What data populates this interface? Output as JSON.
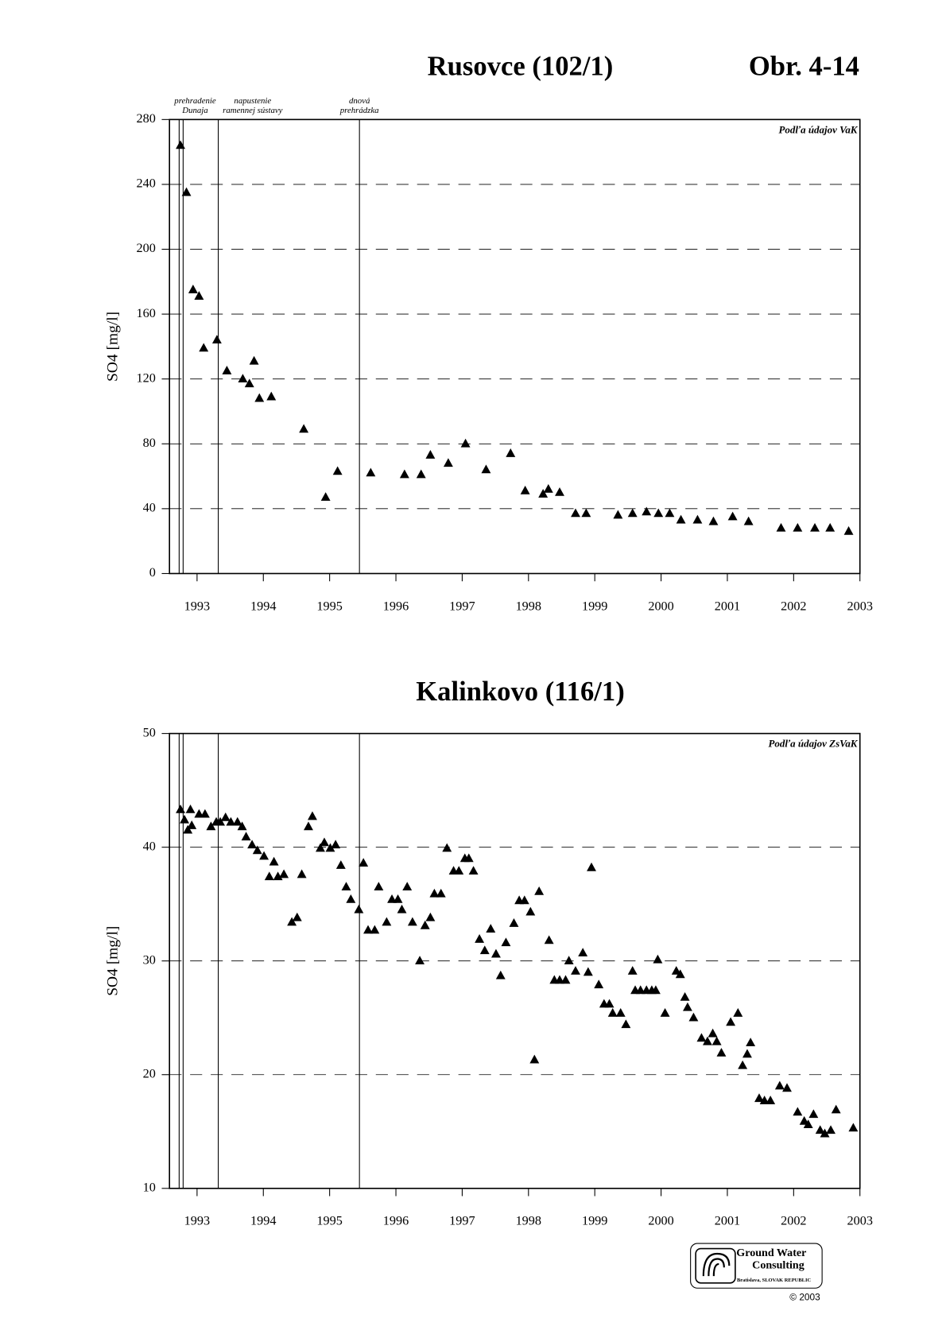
{
  "figure_label": "Obr. 4-14",
  "logo": {
    "name": [
      "Ground Water",
      "Consulting"
    ],
    "place": "Bratislava, SLOVAK REPUBLIC",
    "copyright": "© 2003"
  },
  "chart_data": [
    {
      "type": "scatter",
      "title": "Rusovce (102/1)",
      "y_label": "SO4 [mg/l]",
      "source": "Podľa údajov VaK",
      "color": "#000000",
      "xlim": [
        1992.584,
        2003.0
      ],
      "xticks": [
        1993,
        1994,
        1995,
        1996,
        1997,
        1998,
        1999,
        2000,
        2001,
        2002,
        2003
      ],
      "ylim": [
        0,
        280
      ],
      "yticks": [
        0,
        40,
        80,
        120,
        160,
        200,
        240,
        280
      ],
      "grid": true,
      "events": [
        {
          "x": 1992.73
        },
        {
          "x": 1992.79,
          "label": [
            "prehradenie",
            "Dunaja"
          ]
        },
        {
          "x": 1993.32,
          "label": [
            "napustenie",
            "ramennej sústavy"
          ]
        },
        {
          "x": 1995.45,
          "label": [
            "dnová",
            "prehrádzka"
          ]
        }
      ],
      "x": [
        1992.75,
        1992.84,
        1992.94,
        1993.03,
        1993.1,
        1993.3,
        1993.45,
        1993.69,
        1993.79,
        1993.86,
        1993.94,
        1994.12,
        1994.61,
        1994.94,
        1995.12,
        1995.62,
        1996.13,
        1996.38,
        1996.52,
        1996.79,
        1997.05,
        1997.36,
        1997.73,
        1997.95,
        1998.22,
        1998.3,
        1998.47,
        1998.71,
        1998.87,
        1999.35,
        1999.57,
        1999.78,
        1999.96,
        2000.13,
        2000.3,
        2000.55,
        2000.79,
        2001.08,
        2001.32,
        2001.81,
        2002.06,
        2002.32,
        2002.55,
        2002.83
      ],
      "values": [
        264,
        235,
        175,
        171,
        139,
        144,
        125,
        120,
        117,
        131,
        108,
        109,
        89,
        47,
        63,
        62,
        61,
        61,
        73,
        68,
        80,
        64,
        74,
        51,
        49,
        52,
        50,
        37,
        37,
        36,
        37,
        38,
        37,
        37,
        33,
        33,
        32,
        35,
        32,
        28,
        28,
        28,
        28,
        26
      ]
    },
    {
      "type": "scatter",
      "title": "Kalinkovo (116/1)",
      "y_label": "SO4 [mg/l]",
      "source": "Podľa údajov ZsVaK",
      "color": "#000000",
      "xlim": [
        1992.584,
        2003.0
      ],
      "xticks": [
        1993,
        1994,
        1995,
        1996,
        1997,
        1998,
        1999,
        2000,
        2001,
        2002,
        2003
      ],
      "ylim": [
        10,
        50
      ],
      "yticks": [
        10,
        20,
        30,
        40,
        50
      ],
      "grid": true,
      "events": [
        {
          "x": 1992.73
        },
        {
          "x": 1992.79
        },
        {
          "x": 1993.32
        },
        {
          "x": 1995.45
        }
      ],
      "x": [
        1992.75,
        1992.81,
        1992.86,
        1992.9,
        1992.92,
        1993.03,
        1993.12,
        1993.21,
        1993.29,
        1993.35,
        1993.43,
        1993.51,
        1993.61,
        1993.68,
        1993.74,
        1993.83,
        1993.91,
        1994.01,
        1994.09,
        1994.16,
        1994.22,
        1994.31,
        1994.43,
        1994.51,
        1994.58,
        1994.68,
        1994.74,
        1994.86,
        1994.92,
        1995.01,
        1995.09,
        1995.17,
        1995.25,
        1995.32,
        1995.44,
        1995.51,
        1995.58,
        1995.68,
        1995.74,
        1995.86,
        1995.94,
        1996.03,
        1996.09,
        1996.17,
        1996.25,
        1996.36,
        1996.44,
        1996.52,
        1996.58,
        1996.68,
        1996.77,
        1996.87,
        1996.95,
        1997.04,
        1997.1,
        1997.17,
        1997.26,
        1997.34,
        1997.43,
        1997.51,
        1997.58,
        1997.66,
        1997.78,
        1997.86,
        1997.94,
        1998.03,
        1998.09,
        1998.16,
        1998.31,
        1998.39,
        1998.47,
        1998.56,
        1998.61,
        1998.71,
        1998.82,
        1998.9,
        1998.95,
        1999.06,
        1999.14,
        1999.22,
        1999.27,
        1999.39,
        1999.47,
        1999.57,
        1999.61,
        1999.69,
        1999.78,
        1999.86,
        1999.92,
        1999.95,
        2000.06,
        2000.23,
        2000.29,
        2000.36,
        2000.4,
        2000.49,
        2000.61,
        2000.7,
        2000.78,
        2000.84,
        2000.91,
        2001.05,
        2001.16,
        2001.23,
        2001.3,
        2001.35,
        2001.48,
        2001.56,
        2001.65,
        2001.79,
        2001.9,
        2002.06,
        2002.16,
        2002.22,
        2002.3,
        2002.4,
        2002.47,
        2002.56,
        2002.64,
        2002.9
      ],
      "values": [
        43.3,
        42.4,
        41.5,
        43.3,
        41.9,
        42.9,
        42.9,
        41.8,
        42.2,
        42.2,
        42.6,
        42.2,
        42.2,
        41.8,
        40.9,
        40.2,
        39.7,
        39.2,
        37.4,
        38.7,
        37.4,
        37.6,
        33.4,
        33.8,
        37.6,
        41.8,
        42.7,
        39.9,
        40.4,
        39.9,
        40.2,
        38.4,
        36.5,
        35.4,
        34.5,
        38.6,
        32.7,
        32.7,
        36.5,
        33.4,
        35.4,
        35.4,
        34.5,
        36.5,
        33.4,
        30.0,
        33.1,
        33.8,
        35.9,
        35.9,
        39.9,
        37.9,
        37.9,
        39.0,
        39.0,
        37.9,
        31.9,
        30.9,
        32.8,
        30.6,
        28.7,
        31.6,
        33.3,
        35.3,
        35.3,
        34.3,
        21.3,
        36.1,
        31.8,
        28.3,
        28.3,
        28.3,
        30.0,
        29.1,
        30.7,
        29.0,
        38.2,
        27.9,
        26.2,
        26.2,
        25.4,
        25.4,
        24.4,
        29.1,
        27.4,
        27.4,
        27.4,
        27.4,
        27.4,
        30.1,
        25.4,
        29.1,
        28.8,
        26.8,
        25.9,
        25.0,
        23.2,
        22.9,
        23.6,
        22.9,
        21.9,
        24.6,
        25.4,
        20.8,
        21.8,
        22.8,
        17.9,
        17.7,
        17.7,
        19.0,
        18.8,
        16.7,
        15.9,
        15.6,
        16.5,
        15.1,
        14.8,
        15.1,
        16.9,
        15.3
      ]
    }
  ]
}
